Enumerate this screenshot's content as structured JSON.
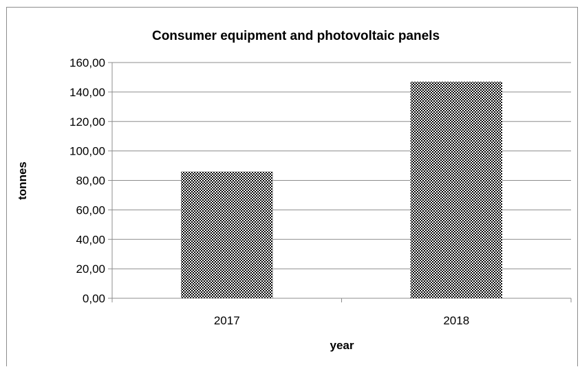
{
  "chart_data": {
    "type": "bar",
    "title": "Consumer equipment and photovoltaic panels",
    "xlabel": "year",
    "ylabel": "tonnes",
    "categories": [
      "2017",
      "2018"
    ],
    "values": [
      86.0,
      147.0
    ],
    "ylim": [
      0,
      160
    ],
    "yticks": [
      "0,00",
      "20,00",
      "40,00",
      "60,00",
      "80,00",
      "100,00",
      "120,00",
      "140,00",
      "160,00"
    ],
    "grid": true,
    "legend": "none",
    "bar_fill": "checkered black and white pattern",
    "colors": {
      "bar": "#000000",
      "grid": "#8c8c8c"
    }
  }
}
